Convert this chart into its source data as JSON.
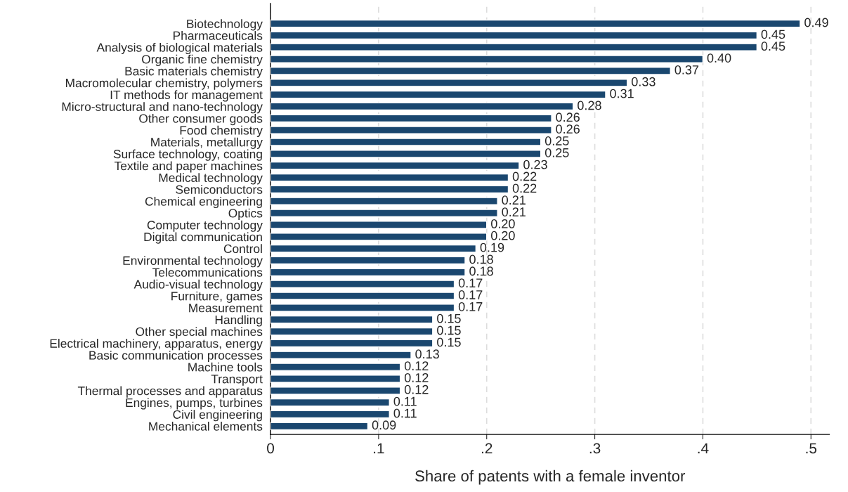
{
  "chart_data": {
    "type": "bar",
    "orientation": "horizontal",
    "xlabel": "Share of patents with a female inventor",
    "categories": [
      "Biotechnology",
      "Pharmaceuticals",
      "Analysis of biological materials",
      "Organic fine chemistry",
      "Basic materials chemistry",
      "Macromolecular chemistry, polymers",
      "IT methods for management",
      "Micro-structural and nano-technology",
      "Other consumer goods",
      "Food chemistry",
      "Materials, metallurgy",
      "Surface technology, coating",
      "Textile and paper machines",
      "Medical technology",
      "Semiconductors",
      "Chemical engineering",
      "Optics",
      "Computer technology",
      "Digital communication",
      "Control",
      "Environmental technology",
      "Telecommunications",
      "Audio-visual technology",
      "Furniture, games",
      "Measurement",
      "Handling",
      "Other special machines",
      "Electrical machinery, apparatus, energy",
      "Basic communication processes",
      "Machine tools",
      "Transport",
      "Thermal processes and apparatus",
      "Engines, pumps, turbines",
      "Civil engineering",
      "Mechanical elements"
    ],
    "values": [
      0.49,
      0.45,
      0.45,
      0.4,
      0.37,
      0.33,
      0.31,
      0.28,
      0.26,
      0.26,
      0.25,
      0.25,
      0.23,
      0.22,
      0.22,
      0.21,
      0.21,
      0.2,
      0.2,
      0.19,
      0.18,
      0.18,
      0.17,
      0.17,
      0.17,
      0.15,
      0.15,
      0.15,
      0.13,
      0.12,
      0.12,
      0.12,
      0.11,
      0.11,
      0.09
    ],
    "value_labels": [
      "0.49",
      "0.45",
      "0.45",
      "0.40",
      "0.37",
      "0.33",
      "0.31",
      "0.28",
      "0.26",
      "0.26",
      "0.25",
      "0.25",
      "0.23",
      "0.22",
      "0.22",
      "0.21",
      "0.21",
      "0.20",
      "0.20",
      "0.19",
      "0.18",
      "0.18",
      "0.17",
      "0.17",
      "0.17",
      "0.15",
      "0.15",
      "0.15",
      "0.13",
      "0.12",
      "0.12",
      "0.12",
      "0.11",
      "0.11",
      "0.09"
    ],
    "color": "#1a476f",
    "xlim": [
      0,
      0.517
    ],
    "xticks": [
      0,
      {
        "value": 0.1,
        "label": ".1"
      },
      {
        "value": 0.2,
        "label": ".2"
      },
      {
        "value": 0.3,
        "label": ".3"
      },
      {
        "value": 0.4,
        "label": ".4"
      },
      {
        "value": 0.5,
        "label": ".5"
      }
    ],
    "grid": "x"
  }
}
